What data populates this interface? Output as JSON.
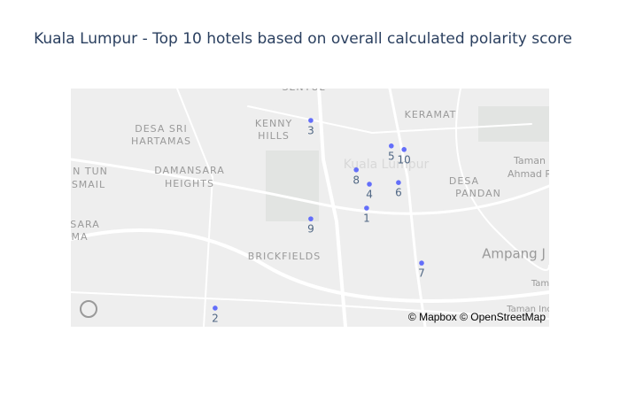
{
  "chart_data": {
    "type": "scattermapbox",
    "title": "Kuala Lumpur - Top 10 hotels based on overall calculated polarity score",
    "text": [
      "1",
      "2",
      "3",
      "4",
      "5",
      "6",
      "7",
      "8",
      "9",
      "10"
    ],
    "lat": [
      3.15,
      3.1249,
      3.172,
      3.156,
      3.1656,
      3.1564,
      3.1362,
      3.1596,
      3.1473,
      3.1647
    ],
    "lon": [
      101.7142,
      101.6762,
      101.7002,
      101.7149,
      101.7204,
      101.7222,
      101.728,
      101.7116,
      101.7002,
      101.7236
    ],
    "lonlim": [
      101.64,
      101.76
    ],
    "latlim": [
      3.12,
      3.18
    ],
    "color": "#636efa",
    "map_labels": [
      "SENTUL",
      "KENNY",
      "HILLS",
      "KERAMAT",
      "DESA SRI",
      "HARTAMAS",
      "DAMANSARA",
      "HEIGHTS",
      "N TUN",
      "SMAIL",
      "SARA",
      "MA",
      "Kuala Lumpur",
      "BRICKFIELDS",
      "DESA",
      "PANDAN",
      "Ampang J",
      "Taman",
      "Ahmad R",
      "Tam",
      "Taman Ind"
    ],
    "attribution": "© Mapbox © OpenStreetMap"
  }
}
